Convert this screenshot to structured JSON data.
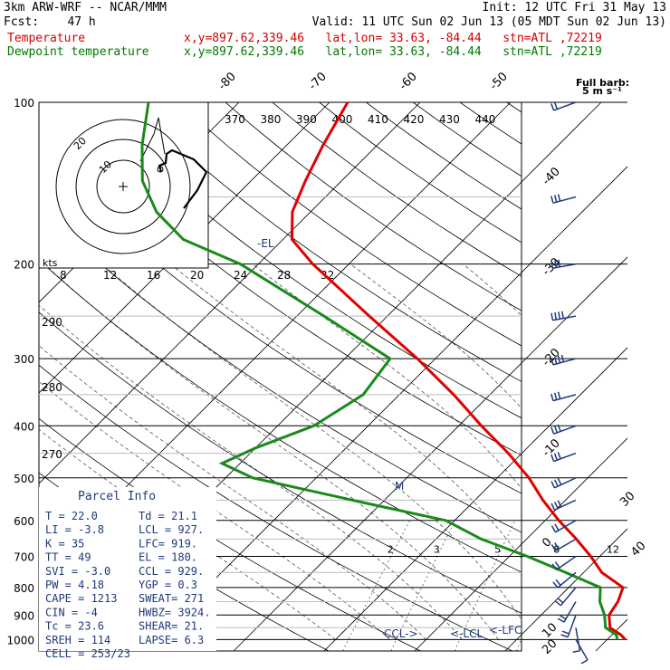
{
  "header": {
    "model": "3km ARW-WRF -- NCAR/MMM",
    "init": "Init: 12 UTC Fri 31 May 13",
    "fcst": "Fcst:    47 h",
    "valid": "Valid: 11 UTC Sun 02 Jun 13 (05 MDT Sun 02 Jun 13)",
    "temp_label": "Temperature",
    "dew_label": "Dewpoint temperature",
    "location": "x,y=897.62,339.46   lat,lon= 33.63, -84.44   stn=ATL ,72219",
    "wind_note_1": "Full barb:",
    "wind_note_2": "5 m s⁻¹"
  },
  "colors": {
    "temperature": "#e00000",
    "dewpoint": "#1a8a1a",
    "parcel": "#1f3a7a",
    "grid": "#000000"
  },
  "chart_data": {
    "type": "skew-t",
    "pressure_levels": [
      "100",
      "200",
      "300",
      "400",
      "500",
      "600",
      "700",
      "800",
      "900",
      "1000"
    ],
    "isotherm_labels": [
      "-80",
      "-70",
      "-60",
      "-50",
      "-40",
      "-30",
      "-20",
      "-10",
      "0",
      "10",
      "20",
      "30",
      "40"
    ],
    "theta_labels": [
      "370",
      "380",
      "390",
      "400",
      "410",
      "420",
      "430",
      "440"
    ],
    "theta_e_labels": [
      "290",
      "280",
      "270"
    ],
    "mixing_ratio_labels": [
      "2",
      "3",
      "5",
      "8",
      "12",
      "20"
    ],
    "hodo_speed_unit": "kts",
    "hodo_speed_labels": [
      "8",
      "12",
      "16",
      "20",
      "24",
      "28",
      "32"
    ],
    "hodo_ring_labels": [
      "20",
      "10"
    ],
    "markers": {
      "el": "-EL",
      "ccl": "CCL->",
      "lcl": "<-LCL",
      "lfc": "<-LFC",
      "mid": "M"
    },
    "temperature": [
      {
        "p": 1000,
        "t": 22.0
      },
      {
        "p": 980,
        "t": 21.0
      },
      {
        "p": 950,
        "t": 19.0
      },
      {
        "p": 900,
        "t": 17.5
      },
      {
        "p": 850,
        "t": 17.0
      },
      {
        "p": 800,
        "t": 16.0
      },
      {
        "p": 750,
        "t": 12.0
      },
      {
        "p": 700,
        "t": 9.0
      },
      {
        "p": 650,
        "t": 5.5
      },
      {
        "p": 600,
        "t": 1.5
      },
      {
        "p": 550,
        "t": -2.5
      },
      {
        "p": 500,
        "t": -6.5
      },
      {
        "p": 450,
        "t": -11.5
      },
      {
        "p": 400,
        "t": -17.5
      },
      {
        "p": 350,
        "t": -24.0
      },
      {
        "p": 300,
        "t": -32.0
      },
      {
        "p": 250,
        "t": -42.0
      },
      {
        "p": 200,
        "t": -54.0
      },
      {
        "p": 180,
        "t": -59.0
      },
      {
        "p": 160,
        "t": -62.0
      },
      {
        "p": 140,
        "t": -64.0
      },
      {
        "p": 120,
        "t": -66.0
      },
      {
        "p": 100,
        "t": -68.0
      }
    ],
    "dewpoint": [
      {
        "p": 1000,
        "t": 21.1
      },
      {
        "p": 980,
        "t": 20.5
      },
      {
        "p": 950,
        "t": 18.5
      },
      {
        "p": 900,
        "t": 17.0
      },
      {
        "p": 850,
        "t": 15.0
      },
      {
        "p": 800,
        "t": 13.5
      },
      {
        "p": 750,
        "t": 8.0
      },
      {
        "p": 700,
        "t": 2.0
      },
      {
        "p": 650,
        "t": -5.0
      },
      {
        "p": 600,
        "t": -11.0
      },
      {
        "p": 560,
        "t": -21.0
      },
      {
        "p": 500,
        "t": -37.0
      },
      {
        "p": 470,
        "t": -42.0
      },
      {
        "p": 440,
        "t": -40.0
      },
      {
        "p": 400,
        "t": -36.0
      },
      {
        "p": 350,
        "t": -34.0
      },
      {
        "p": 300,
        "t": -35.0
      },
      {
        "p": 250,
        "t": -47.0
      },
      {
        "p": 200,
        "t": -62.0
      },
      {
        "p": 180,
        "t": -71.0
      },
      {
        "p": 160,
        "t": -77.0
      },
      {
        "p": 140,
        "t": -82.0
      },
      {
        "p": 120,
        "t": -86.0
      },
      {
        "p": 100,
        "t": -90.0
      }
    ],
    "winds": [
      {
        "p": 1000,
        "dir": 150,
        "spd": 5
      },
      {
        "p": 950,
        "dir": 170,
        "spd": 8
      },
      {
        "p": 900,
        "dir": 200,
        "spd": 10
      },
      {
        "p": 850,
        "dir": 210,
        "spd": 12
      },
      {
        "p": 800,
        "dir": 220,
        "spd": 12
      },
      {
        "p": 750,
        "dir": 230,
        "spd": 12
      },
      {
        "p": 700,
        "dir": 235,
        "spd": 13
      },
      {
        "p": 650,
        "dir": 240,
        "spd": 14
      },
      {
        "p": 600,
        "dir": 240,
        "spd": 14
      },
      {
        "p": 550,
        "dir": 245,
        "spd": 15
      },
      {
        "p": 500,
        "dir": 245,
        "spd": 16
      },
      {
        "p": 450,
        "dir": 250,
        "spd": 16
      },
      {
        "p": 400,
        "dir": 250,
        "spd": 17
      },
      {
        "p": 350,
        "dir": 255,
        "spd": 18
      },
      {
        "p": 300,
        "dir": 255,
        "spd": 20
      },
      {
        "p": 250,
        "dir": 260,
        "spd": 20
      },
      {
        "p": 200,
        "dir": 260,
        "spd": 18
      },
      {
        "p": 150,
        "dir": 255,
        "spd": 15
      },
      {
        "p": 100,
        "dir": 250,
        "spd": 12
      }
    ],
    "parcel_info": {
      "title": "Parcel Info",
      "rows": [
        [
          "T   =    22.0",
          "Td =  21.1"
        ],
        [
          "LI  =    -3.8",
          "LCL =  927."
        ],
        [
          "K   =      35",
          "LFC=  919."
        ],
        [
          "TT  =      49",
          "EL  =  180."
        ],
        [
          "SVI =    -3.0",
          "CCL =  929."
        ],
        [
          "PW  =    4.18",
          "YGP =   0.3"
        ],
        [
          "CAPE =   1213",
          "SWEAT=  271"
        ],
        [
          "CIN =      -4",
          "HWBZ= 3924."
        ],
        [
          "Tc  =    23.6",
          "SHEAR=  21."
        ],
        [
          "SREH =    114",
          "LAPSE=  6.3"
        ],
        [
          "CELL = 253/23",
          ""
        ]
      ]
    }
  }
}
